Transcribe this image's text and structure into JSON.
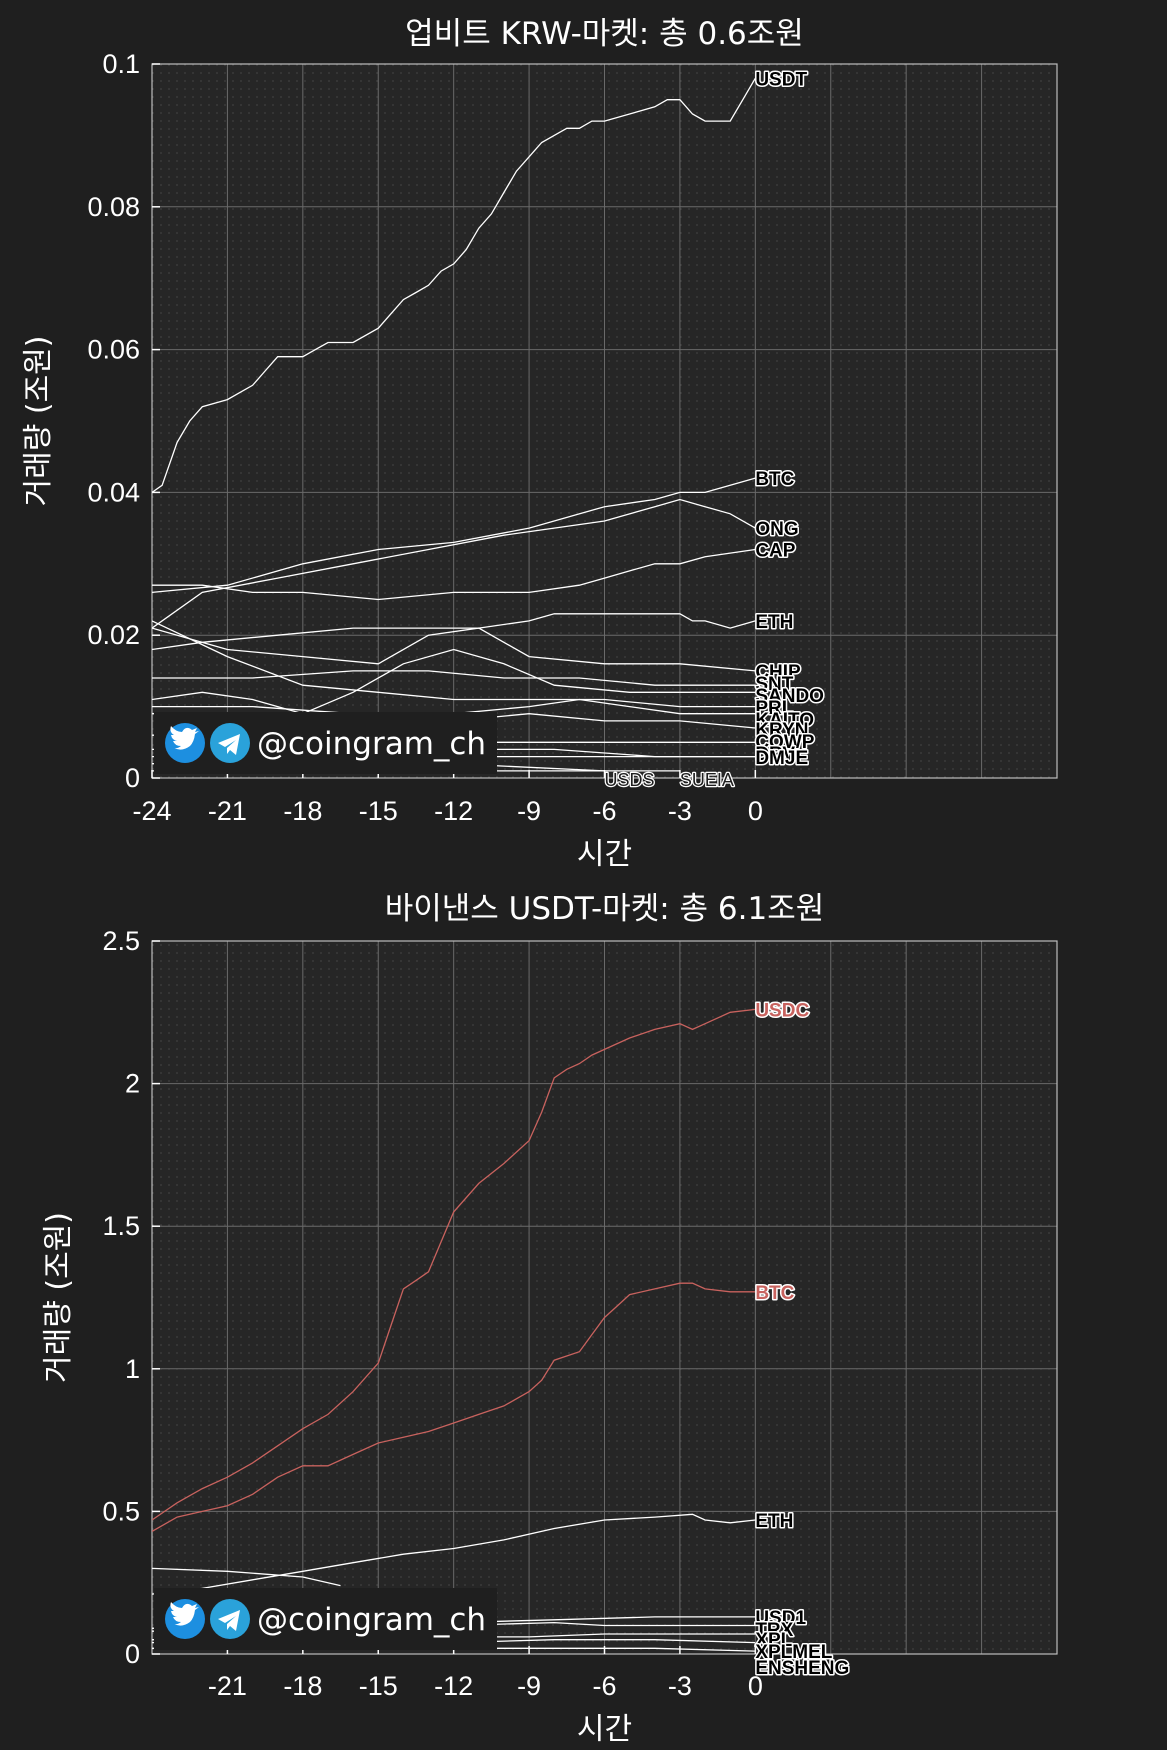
{
  "watermark": {
    "handle": "@coingram_ch",
    "icons": [
      "twitter-icon",
      "telegram-icon"
    ]
  },
  "chart_data": [
    {
      "type": "line",
      "title": "업비트 KRW-마켓: 총 0.6조원",
      "xlabel": "시간",
      "ylabel": "거래량 (조원)",
      "xlim": [
        -24,
        12
      ],
      "ylim": [
        0,
        0.1
      ],
      "xticks": [
        -24,
        -21,
        -18,
        -15,
        -12,
        -9,
        -6,
        -3,
        0
      ],
      "xtick_labels": [
        "-24",
        "-21",
        "-18",
        "-15",
        "-12",
        "-9",
        "-6",
        "-3",
        "0"
      ],
      "yticks": [
        0,
        0.02,
        0.04,
        0.06,
        0.08,
        0.1
      ],
      "ytick_labels": [
        "0",
        "0.02",
        "0.04",
        "0.06",
        "0.08",
        "0.1"
      ],
      "grid": true,
      "line_color": "#ffffff",
      "series": [
        {
          "name": "USDT",
          "x": [
            -24,
            -23.6,
            -23,
            -22.5,
            -22,
            -21,
            -20.5,
            -20,
            -19.5,
            -19,
            -18,
            -17.5,
            -17,
            -16.5,
            -16,
            -15,
            -14.5,
            -14,
            -13.5,
            -13,
            -12.5,
            -12,
            -11.5,
            -11,
            -10.5,
            -10,
            -9.5,
            -9,
            -8.5,
            -8,
            -7.5,
            -7,
            -6.5,
            -6,
            -5,
            -4,
            -3.5,
            -3,
            -2.5,
            -2,
            -1.5,
            -1,
            -0.5,
            0
          ],
          "y": [
            0.04,
            0.041,
            0.047,
            0.05,
            0.052,
            0.053,
            0.054,
            0.055,
            0.057,
            0.059,
            0.059,
            0.06,
            0.061,
            0.061,
            0.061,
            0.063,
            0.065,
            0.067,
            0.068,
            0.069,
            0.071,
            0.072,
            0.074,
            0.077,
            0.079,
            0.082,
            0.085,
            0.087,
            0.089,
            0.09,
            0.091,
            0.091,
            0.092,
            0.092,
            0.093,
            0.094,
            0.095,
            0.095,
            0.093,
            0.092,
            0.092,
            0.092,
            0.095,
            0.098
          ]
        },
        {
          "name": "BTC",
          "x": [
            -24,
            -21,
            -18,
            -15,
            -12,
            -9,
            -6,
            -4,
            -3,
            -2,
            -1,
            0
          ],
          "y": [
            0.026,
            0.027,
            0.03,
            0.032,
            0.033,
            0.035,
            0.038,
            0.039,
            0.04,
            0.04,
            0.041,
            0.042
          ]
        },
        {
          "name": "ONG",
          "x": [
            -24,
            -22,
            -19,
            -16,
            -13,
            -10,
            -8,
            -6,
            -4,
            -3,
            -2,
            -1,
            0
          ],
          "y": [
            0.021,
            0.026,
            0.028,
            0.03,
            0.032,
            0.034,
            0.035,
            0.036,
            0.038,
            0.039,
            0.038,
            0.037,
            0.035
          ]
        },
        {
          "name": "CAP",
          "x": [
            -24,
            -22,
            -20,
            -18,
            -15,
            -12,
            -9,
            -7,
            -6,
            -5,
            -4,
            -3,
            -2,
            0
          ],
          "y": [
            0.027,
            0.027,
            0.026,
            0.026,
            0.025,
            0.026,
            0.026,
            0.027,
            0.028,
            0.029,
            0.03,
            0.03,
            0.031,
            0.032
          ]
        },
        {
          "name": "ETH",
          "x": [
            -24,
            -22,
            -19,
            -16,
            -13,
            -11,
            -9,
            -8,
            -6,
            -4,
            -3,
            -2.5,
            -2,
            -1,
            0
          ],
          "y": [
            0.018,
            0.019,
            0.02,
            0.021,
            0.021,
            0.021,
            0.022,
            0.023,
            0.023,
            0.023,
            0.023,
            0.022,
            0.022,
            0.021,
            0.022
          ]
        },
        {
          "name": "CHIP",
          "x": [
            -24,
            -21,
            -18,
            -15,
            -13,
            -11,
            -9,
            -6,
            -3,
            0
          ],
          "y": [
            0.021,
            0.018,
            0.017,
            0.016,
            0.02,
            0.021,
            0.017,
            0.016,
            0.016,
            0.015
          ]
        },
        {
          "name": "SNT",
          "x": [
            -24,
            -20,
            -16,
            -13,
            -10,
            -7,
            -4,
            0
          ],
          "y": [
            0.014,
            0.014,
            0.015,
            0.015,
            0.014,
            0.014,
            0.013,
            0.013
          ]
        },
        {
          "name": "SANDO",
          "x": [
            -24,
            -22,
            -20,
            -18,
            -16,
            -14,
            -12,
            -10,
            -8,
            -5,
            -2,
            0
          ],
          "y": [
            0.011,
            0.012,
            0.011,
            0.009,
            0.012,
            0.016,
            0.018,
            0.016,
            0.013,
            0.012,
            0.012,
            0.012
          ]
        },
        {
          "name": "PRL",
          "x": [
            -24,
            -21,
            -18,
            -15,
            -12,
            -9,
            -6,
            -3,
            0
          ],
          "y": [
            0.022,
            0.017,
            0.013,
            0.012,
            0.011,
            0.011,
            0.011,
            0.01,
            0.01
          ]
        },
        {
          "name": "KAITO",
          "x": [
            -24,
            -20,
            -16,
            -12,
            -9,
            -7,
            -5,
            -3,
            0
          ],
          "y": [
            0.01,
            0.01,
            0.009,
            0.009,
            0.01,
            0.011,
            0.01,
            0.009,
            0.009
          ]
        },
        {
          "name": "KRYN",
          "x": [
            -24,
            -20,
            -16,
            -12,
            -9,
            -6,
            -3,
            0
          ],
          "y": [
            0.009,
            0.009,
            0.008,
            0.008,
            0.009,
            0.008,
            0.008,
            0.007
          ]
        },
        {
          "name": "COWP",
          "x": [
            -24,
            -20,
            -16,
            -12,
            -8,
            -4,
            0
          ],
          "y": [
            0.006,
            0.006,
            0.006,
            0.005,
            0.005,
            0.005,
            0.005
          ]
        },
        {
          "name": "DRV",
          "x": [
            -24,
            -20,
            -16,
            -12,
            -8,
            -4,
            0
          ],
          "y": [
            0.004,
            0.004,
            0.004,
            0.004,
            0.004,
            0.003,
            0.003
          ]
        },
        {
          "name": "DMJE",
          "x": [
            -24,
            -20,
            -16,
            -12,
            -8,
            -4,
            0
          ],
          "y": [
            0.003,
            0.003,
            0.003,
            0.003,
            0.003,
            0.003,
            0.003
          ]
        },
        {
          "name": "USDS",
          "x": [
            -24,
            -18,
            -12,
            -6
          ],
          "y": [
            0.001,
            0.001,
            0.001,
            0.001
          ]
        },
        {
          "name": "SUEIA",
          "x": [
            -24,
            -18,
            -12,
            -6,
            -3
          ],
          "y": [
            0.002,
            0.002,
            0.002,
            0.001,
            0.001
          ]
        }
      ]
    },
    {
      "type": "line",
      "title": "바이낸스 USDT-마켓: 총 6.1조원",
      "xlabel": "시간",
      "ylabel": "거래량 (조원)",
      "xlim": [
        -24,
        12
      ],
      "ylim": [
        0,
        2.5
      ],
      "xticks": [
        -21,
        -18,
        -15,
        -12,
        -9,
        -6,
        -3,
        0
      ],
      "xtick_labels": [
        "-21",
        "-18",
        "-15",
        "-12",
        "-9",
        "-6",
        "-3",
        "0"
      ],
      "yticks": [
        0,
        0.5,
        1,
        1.5,
        2,
        2.5
      ],
      "ytick_labels": [
        "0",
        "0.5",
        "1",
        "1.5",
        "2",
        "2.5"
      ],
      "grid": true,
      "line_color": "#ffffff",
      "series": [
        {
          "name": "USDC",
          "color": "#c8625e",
          "x": [
            -24,
            -23,
            -22,
            -21,
            -20,
            -19,
            -18,
            -17,
            -16,
            -15,
            -14.5,
            -14,
            -13.5,
            -13,
            -12,
            -11,
            -10,
            -9,
            -8.5,
            -8,
            -7.5,
            -7,
            -6.5,
            -6,
            -5,
            -4,
            -3,
            -2.5,
            -2,
            -1,
            0
          ],
          "y": [
            0.47,
            0.53,
            0.58,
            0.62,
            0.67,
            0.73,
            0.79,
            0.84,
            0.92,
            1.02,
            1.15,
            1.28,
            1.31,
            1.34,
            1.55,
            1.65,
            1.72,
            1.8,
            1.9,
            2.02,
            2.05,
            2.07,
            2.1,
            2.12,
            2.16,
            2.19,
            2.21,
            2.19,
            2.21,
            2.25,
            2.26
          ]
        },
        {
          "name": "BTC",
          "color": "#c8625e",
          "x": [
            -24,
            -23,
            -22,
            -21,
            -20,
            -19,
            -18,
            -17,
            -16,
            -15,
            -14,
            -13,
            -12,
            -11,
            -10,
            -9,
            -8.5,
            -8,
            -7,
            -6.5,
            -6,
            -5.5,
            -5,
            -4,
            -3,
            -2.5,
            -2,
            -1,
            0
          ],
          "y": [
            0.43,
            0.48,
            0.5,
            0.52,
            0.56,
            0.62,
            0.66,
            0.66,
            0.7,
            0.74,
            0.76,
            0.78,
            0.81,
            0.84,
            0.87,
            0.92,
            0.96,
            1.03,
            1.06,
            1.12,
            1.18,
            1.22,
            1.26,
            1.28,
            1.3,
            1.3,
            1.28,
            1.27,
            1.27
          ]
        },
        {
          "name": "ETH",
          "x": [
            -24,
            -22,
            -20,
            -18,
            -16,
            -14,
            -12,
            -10,
            -8,
            -6,
            -4,
            -2.5,
            -2,
            -1,
            0
          ],
          "y": [
            0.21,
            0.23,
            0.26,
            0.29,
            0.32,
            0.35,
            0.37,
            0.4,
            0.44,
            0.47,
            0.48,
            0.49,
            0.47,
            0.46,
            0.47
          ]
        },
        {
          "name": "USD1",
          "x": [
            -24,
            -18,
            -12,
            -8,
            -4,
            -2,
            0
          ],
          "y": [
            0.09,
            0.1,
            0.11,
            0.12,
            0.13,
            0.13,
            0.13
          ]
        },
        {
          "name": "TRX",
          "x": [
            -24,
            -18,
            -12,
            -8,
            -6,
            -4,
            0
          ],
          "y": [
            0.08,
            0.09,
            0.1,
            0.11,
            0.1,
            0.1,
            0.1
          ]
        },
        {
          "name": "XPL",
          "x": [
            -24,
            -18,
            -12,
            -9,
            -6,
            -4,
            0
          ],
          "y": [
            0.05,
            0.05,
            0.06,
            0.06,
            0.07,
            0.07,
            0.07
          ]
        },
        {
          "name": "XPLMEL",
          "x": [
            -24,
            -18,
            -12,
            -8,
            -4,
            0
          ],
          "y": [
            0.04,
            0.04,
            0.04,
            0.05,
            0.05,
            0.04
          ]
        },
        {
          "name": "ENSHENG",
          "x": [
            -24,
            -18,
            -12,
            -8,
            -4,
            0
          ],
          "y": [
            0.02,
            0.02,
            0.02,
            0.02,
            0.02,
            0.01
          ]
        },
        {
          "name": "",
          "x": [
            -24,
            -21,
            -18,
            -16.5
          ],
          "y": [
            0.3,
            0.29,
            0.27,
            0.24
          ]
        }
      ]
    }
  ]
}
